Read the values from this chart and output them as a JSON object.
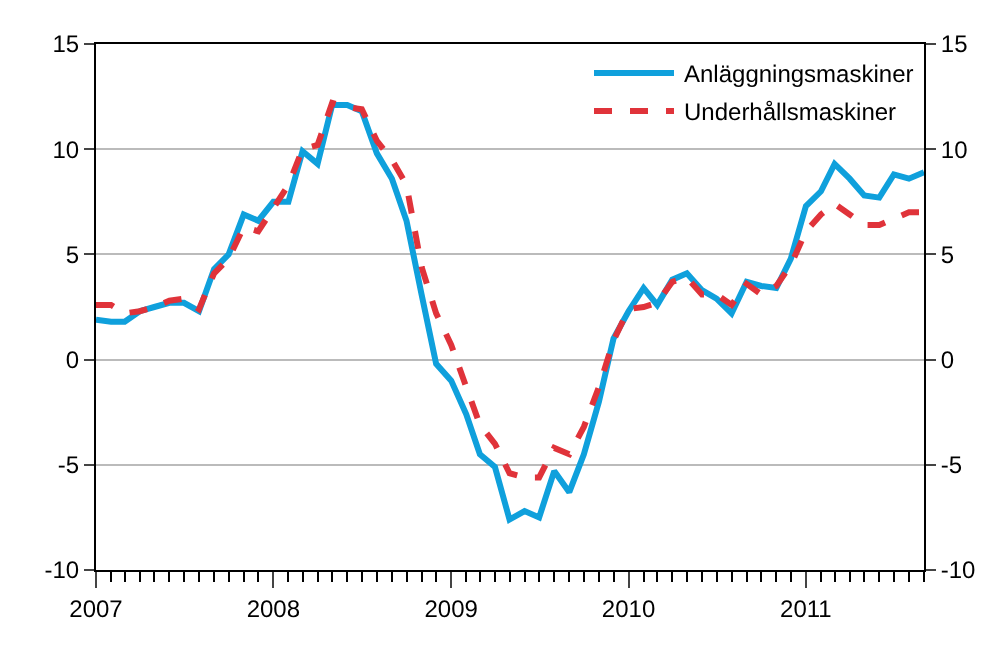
{
  "chart_data": {
    "type": "line",
    "x": [
      "2007-01",
      "2007-02",
      "2007-03",
      "2007-04",
      "2007-05",
      "2007-06",
      "2007-07",
      "2007-08",
      "2007-09",
      "2007-10",
      "2007-11",
      "2007-12",
      "2008-01",
      "2008-02",
      "2008-03",
      "2008-04",
      "2008-05",
      "2008-06",
      "2008-07",
      "2008-08",
      "2008-09",
      "2008-10",
      "2008-11",
      "2008-12",
      "2009-01",
      "2009-02",
      "2009-03",
      "2009-04",
      "2009-05",
      "2009-06",
      "2009-07",
      "2009-08",
      "2009-09",
      "2009-10",
      "2009-11",
      "2009-12",
      "2010-01",
      "2010-02",
      "2010-03",
      "2010-04",
      "2010-05",
      "2010-06",
      "2010-07",
      "2010-08",
      "2010-09",
      "2010-10",
      "2010-11",
      "2010-12",
      "2011-01",
      "2011-02",
      "2011-03",
      "2011-04",
      "2011-05",
      "2011-06",
      "2011-07",
      "2011-08",
      "2011-09"
    ],
    "series": [
      {
        "name": "Anläggningsmaskiner",
        "color": "#0fa0dc",
        "line_style": "solid",
        "values": [
          1.9,
          1.8,
          1.8,
          2.3,
          2.5,
          2.7,
          2.7,
          2.3,
          4.3,
          5.0,
          6.9,
          6.6,
          7.5,
          7.5,
          9.9,
          9.3,
          12.1,
          12.1,
          11.8,
          9.8,
          8.6,
          6.6,
          3.1,
          -0.2,
          -1.0,
          -2.6,
          -4.5,
          -5.1,
          -7.6,
          -7.2,
          -7.5,
          -5.3,
          -6.3,
          -4.5,
          -2.0,
          1.0,
          2.3,
          3.4,
          2.6,
          3.8,
          4.1,
          3.3,
          2.9,
          2.2,
          3.7,
          3.5,
          3.4,
          4.8,
          7.3,
          8.0,
          9.3,
          8.6,
          7.8,
          7.7,
          8.8,
          8.6,
          8.9
        ]
      },
      {
        "name": "Underhållsmaskiner",
        "color": "#e0333a",
        "line_style": "dashed",
        "values": [
          2.6,
          2.6,
          2.2,
          2.3,
          2.5,
          2.8,
          2.9,
          2.4,
          4.1,
          4.8,
          6.3,
          6.1,
          7.2,
          8.3,
          10.0,
          10.2,
          12.2,
          12.0,
          11.9,
          10.4,
          9.5,
          8.3,
          4.4,
          2.2,
          0.7,
          -1.3,
          -3.1,
          -4.0,
          -5.4,
          -5.6,
          -5.6,
          -4.2,
          -4.5,
          -3.2,
          -1.3,
          0.9,
          2.4,
          2.5,
          2.7,
          3.7,
          3.9,
          3.1,
          3.1,
          2.6,
          3.6,
          3.1,
          3.5,
          4.5,
          6.1,
          6.9,
          7.4,
          6.9,
          6.4,
          6.4,
          6.7,
          7.0,
          7.0
        ]
      }
    ],
    "xlim": [
      "2007-01",
      "2011-09"
    ],
    "xticks": [
      {
        "value": "2007-01",
        "label": "2007"
      },
      {
        "value": "2008-01",
        "label": "2008"
      },
      {
        "value": "2009-01",
        "label": "2009"
      },
      {
        "value": "2010-01",
        "label": "2010"
      },
      {
        "value": "2011-01",
        "label": "2011"
      }
    ],
    "ylim": [
      -10,
      15
    ],
    "yticks": [
      -10,
      -5,
      0,
      5,
      10,
      15
    ],
    "y2lim": [
      -10,
      15
    ],
    "y2ticks": [
      -10,
      -5,
      0,
      5,
      10,
      15
    ],
    "grid": "y",
    "legend": "top right",
    "marker": "none"
  }
}
